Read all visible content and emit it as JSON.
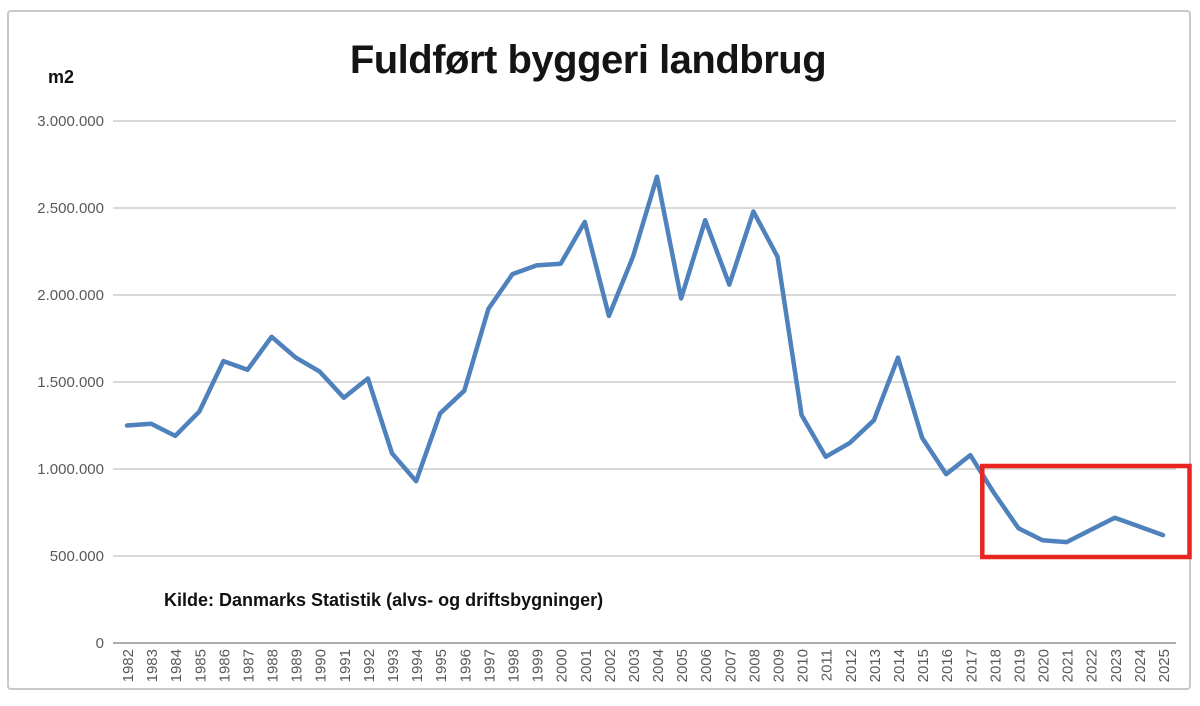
{
  "chart_data": {
    "type": "line",
    "title": "Fuldført byggeri landbrug",
    "ylabel": "m2",
    "xlabel": "",
    "source": "Kilde: Danmarks Statistik (alvs- og driftsbygninger)",
    "legend": "none",
    "grid": true,
    "x": [
      1982,
      1983,
      1984,
      1985,
      1986,
      1987,
      1988,
      1989,
      1990,
      1991,
      1992,
      1993,
      1994,
      1995,
      1996,
      1997,
      1998,
      1999,
      2000,
      2001,
      2002,
      2003,
      2004,
      2005,
      2006,
      2007,
      2008,
      2009,
      2010,
      2011,
      2012,
      2013,
      2014,
      2015,
      2016,
      2017,
      2018,
      2019,
      2020,
      2021,
      2022,
      2023,
      2024,
      2025
    ],
    "values": [
      1250000,
      1260000,
      1190000,
      1330000,
      1620000,
      1570000,
      1760000,
      1640000,
      1560000,
      1410000,
      1520000,
      1090000,
      930000,
      1320000,
      1450000,
      1920000,
      2120000,
      2170000,
      2180000,
      2420000,
      1880000,
      2220000,
      2680000,
      1980000,
      2430000,
      2060000,
      2480000,
      2220000,
      1310000,
      1070000,
      1150000,
      1280000,
      1640000,
      1180000,
      970000,
      1080000,
      860000,
      660000,
      590000,
      580000,
      650000,
      720000,
      670000,
      620000
    ],
    "ylim": [
      0,
      3000000
    ],
    "ytick_values": [
      0,
      500000,
      1000000,
      1500000,
      2000000,
      2500000,
      3000000
    ],
    "ytick_labels": [
      "0",
      "500.000",
      "1.000.000",
      "1.500.000",
      "2.000.000",
      "2.500.000",
      "3.000.000"
    ],
    "line_color": "#4f81bd",
    "gridline_color": "#d9d9d9",
    "axis_line_color": "#ababab",
    "axis_text_color": "#595959",
    "annotation": {
      "shape": "rectangle",
      "purpose": "highlight-recent-years-2018-2025",
      "color": "#e8251f",
      "x_from_year": 2017.5,
      "x_to_year": 2026.1,
      "y_from_value": 494000,
      "y_to_value": 1017000
    }
  }
}
